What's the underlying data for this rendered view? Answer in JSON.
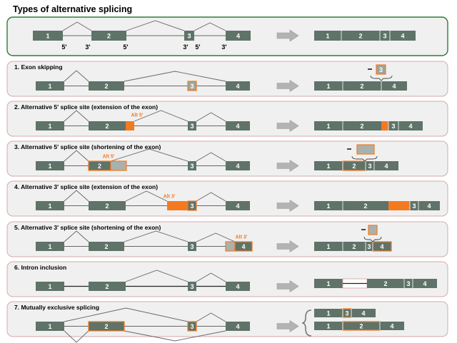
{
  "title": "Types of alternative splicing",
  "colors": {
    "exon": "#5f7368",
    "exon_text": "#ffffff",
    "alt": "#f47a20",
    "alt_text": "#f47a20",
    "panel_fill": "#f0f0f0",
    "panel_border_top": "#2e7d32",
    "panel_border": "#d9a8a8",
    "intron": "#666666",
    "arrow": "#b3b3b3"
  },
  "overview": {
    "exon_labels": [
      "1",
      "2",
      "3",
      "4"
    ],
    "site_labels": [
      "5'",
      "3'",
      "5'",
      "3'",
      "5'",
      "3'"
    ],
    "result_labels": [
      "1",
      "2",
      "3",
      "4"
    ]
  },
  "panels": [
    {
      "title": "1. Exon skipping",
      "exon_labels": [
        "1",
        "2",
        "3",
        "4"
      ],
      "result_labels": [
        "1",
        "2",
        "4"
      ],
      "removed_label": "3"
    },
    {
      "title": "2. Alternative 5' splice site (extension of the exon)",
      "exon_labels": [
        "1",
        "2",
        "3",
        "4"
      ],
      "alt_label": "Alt 5'",
      "result_labels": [
        "1",
        "2",
        "3",
        "4"
      ]
    },
    {
      "title": "3. Alternative 5' splice site (shortening of the exon)",
      "exon_labels": [
        "1",
        "2",
        "3",
        "4"
      ],
      "alt_label": "Alt 5'",
      "result_labels": [
        "1",
        "2",
        "3",
        "4"
      ]
    },
    {
      "title": "4. Alternative 3' splice site (extension of the exon)",
      "exon_labels": [
        "1",
        "2",
        "3",
        "4"
      ],
      "alt_label": "Alt 3'",
      "result_labels": [
        "1",
        "2",
        "3",
        "4"
      ]
    },
    {
      "title": "5. Alternative 3' splice site (shortening of the exon)",
      "exon_labels": [
        "1",
        "2",
        "3",
        "4"
      ],
      "alt_label": "Alt 3'",
      "result_labels": [
        "1",
        "2",
        "3",
        "4"
      ]
    },
    {
      "title": "6. Intron inclusion",
      "exon_labels": [
        "1",
        "2",
        "3",
        "4"
      ],
      "result_labels": [
        "1",
        "2",
        "3",
        "4"
      ]
    },
    {
      "title": "7. Mutually exclusive splicing",
      "exon_labels": [
        "1",
        "2",
        "3",
        "4"
      ],
      "result_a_labels": [
        "1",
        "3",
        "4"
      ],
      "result_b_labels": [
        "1",
        "2",
        "4"
      ]
    }
  ]
}
